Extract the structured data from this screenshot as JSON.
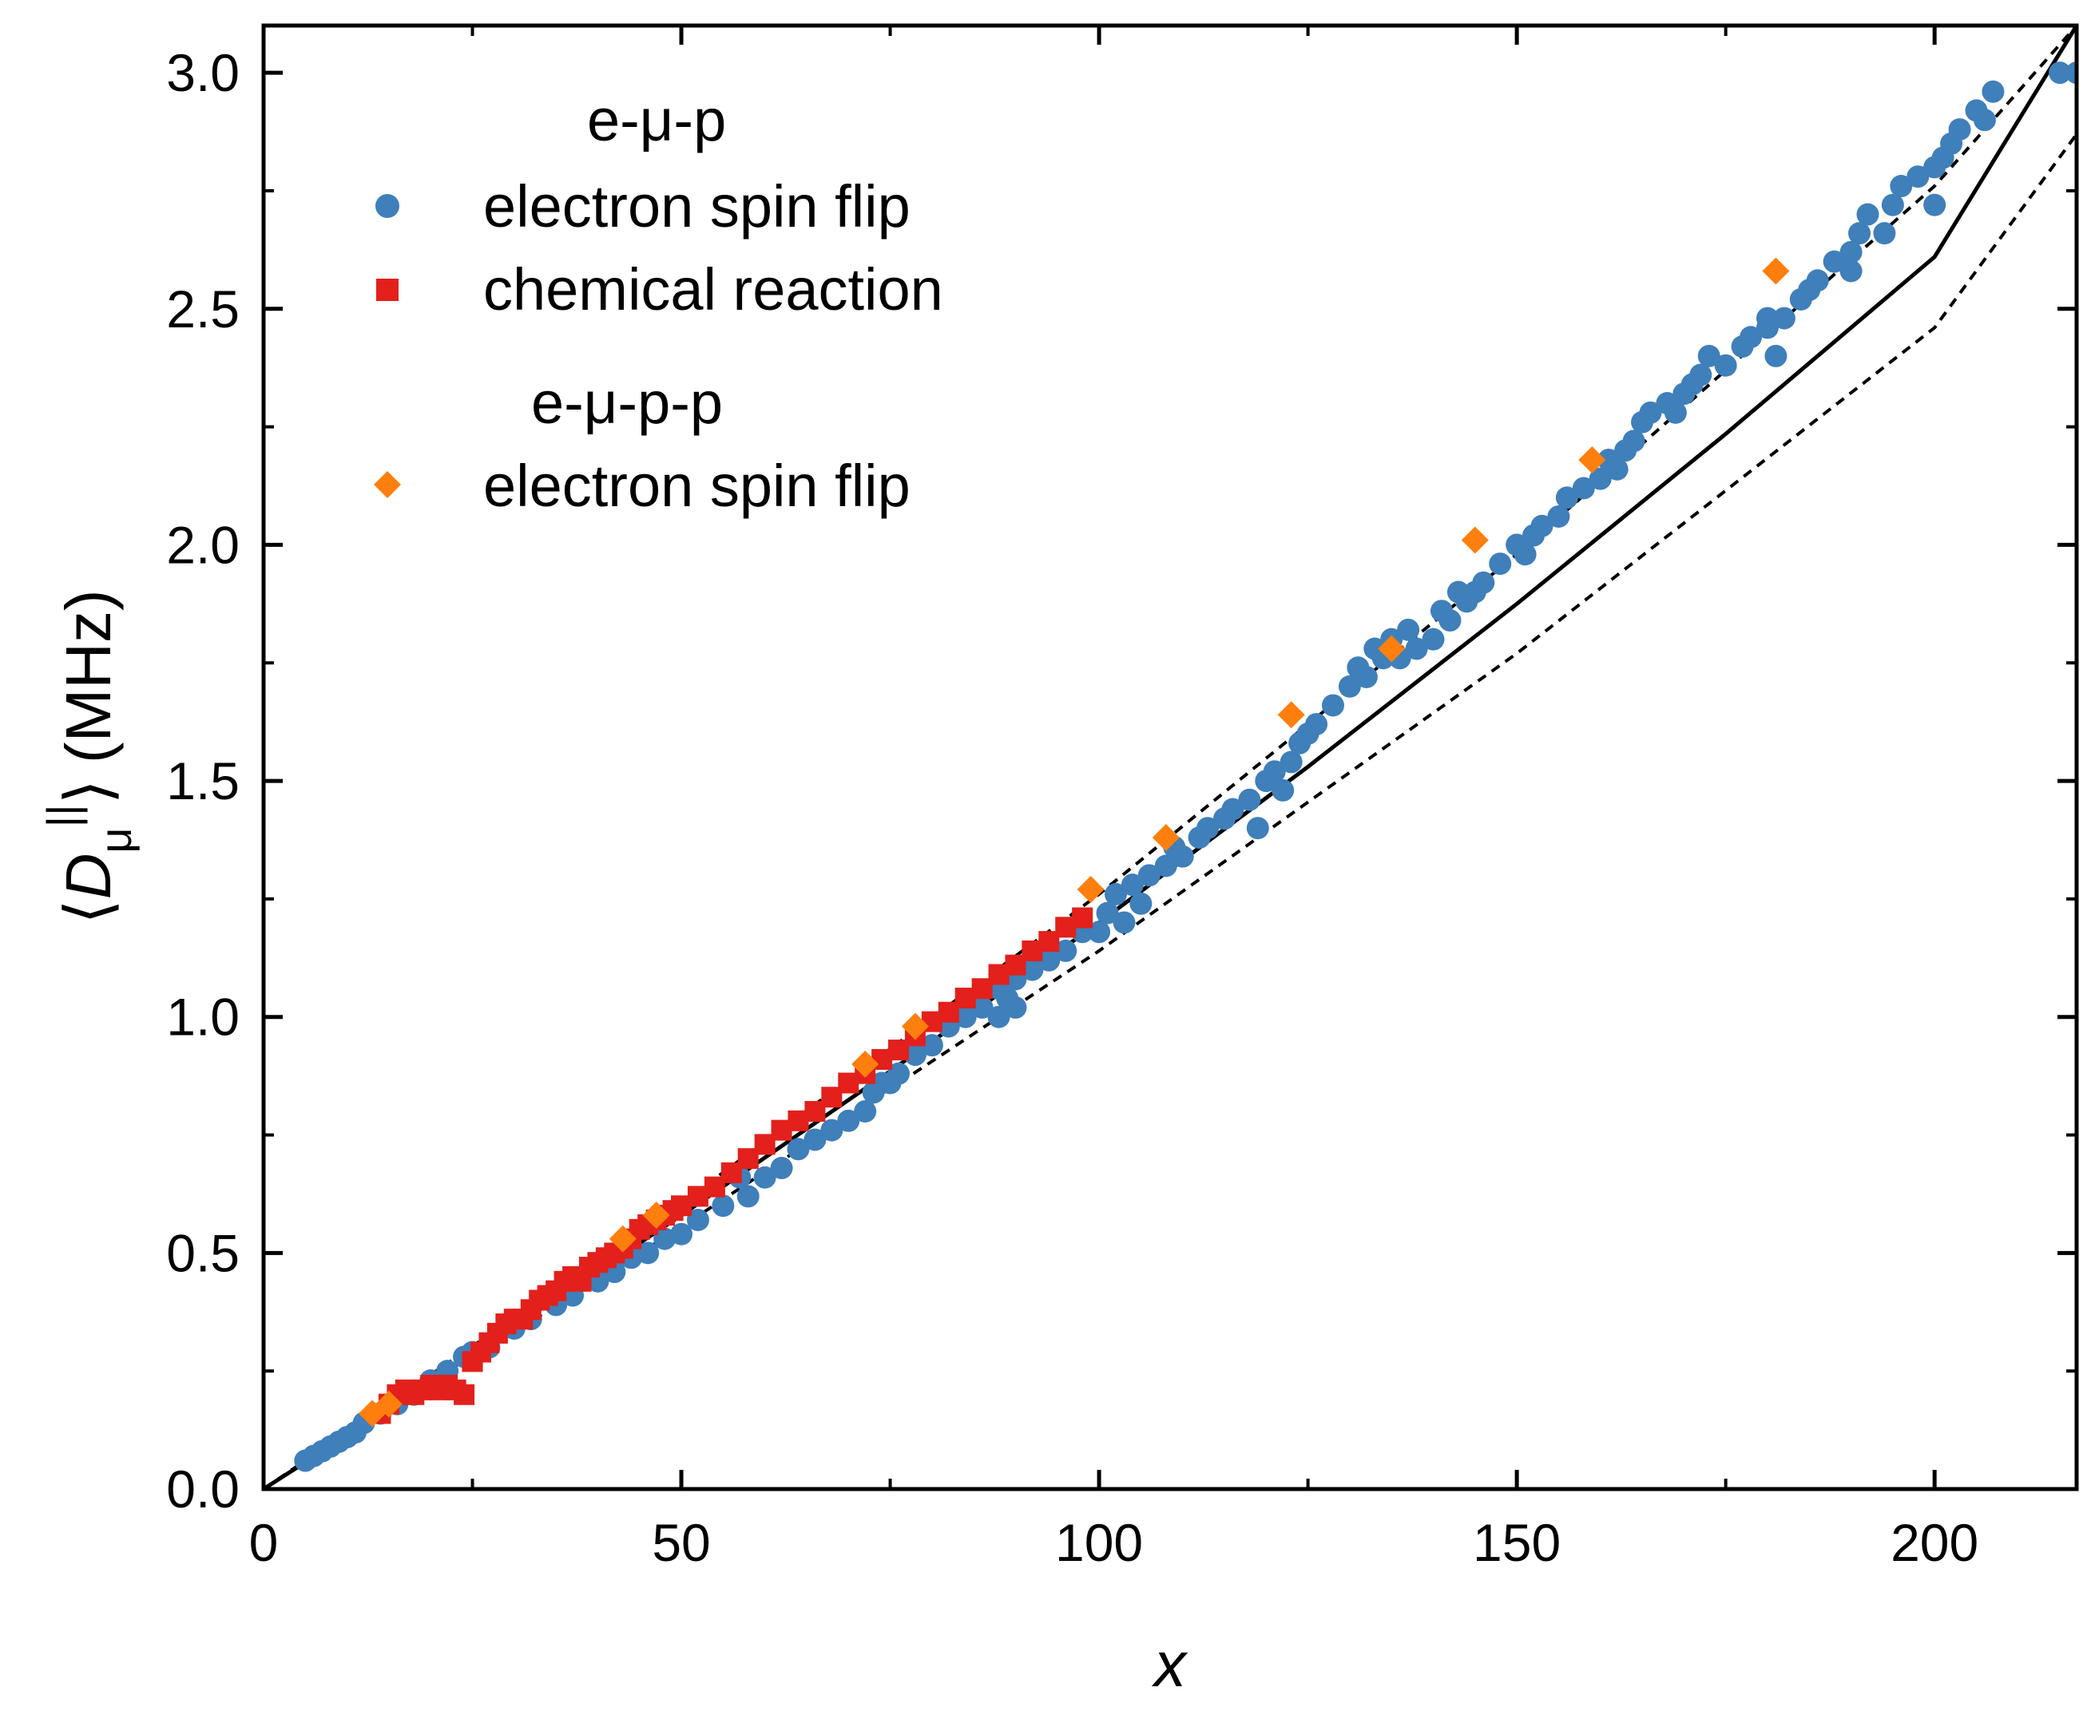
{
  "chart_data": {
    "type": "scatter",
    "xlabel": "x",
    "ylabel_parts": {
      "open": "⟨",
      "var": "D",
      "sub": "μ",
      "sup": "||",
      "close": "⟩",
      "unit": "(MHz)"
    },
    "xlim": [
      0,
      217
    ],
    "ylim": [
      0,
      3.1
    ],
    "xticks": [
      0,
      50,
      100,
      150,
      200
    ],
    "xtick_labels": [
      "0",
      "50",
      "100",
      "150",
      "200"
    ],
    "yticks": [
      0,
      0.5,
      1.0,
      1.5,
      2.0,
      2.5,
      3.0
    ],
    "ytick_labels": [
      "0.0",
      "0.5",
      "1.0",
      "1.5",
      "2.0",
      "2.5",
      "3.0"
    ],
    "legend": {
      "group1_title": "e-μ-p",
      "group1_series1": "electron spin flip",
      "group1_series2": "chemical reaction",
      "group2_title": "e-μ-p-p",
      "group2_series1": "electron spin flip"
    },
    "colors": {
      "blue": "#3f7fba",
      "red": "#e3201b",
      "orange": "#ff7f0e",
      "line": "#000000"
    },
    "fit_curve": {
      "style": "solid",
      "x": [
        0,
        25,
        50,
        75,
        100,
        125,
        150,
        175,
        200,
        217
      ],
      "y": [
        0,
        0.285,
        0.58,
        0.885,
        1.2,
        1.53,
        1.875,
        2.235,
        2.61,
        3.1
      ]
    },
    "upper_bound": {
      "style": "dashed",
      "x": [
        0,
        50,
        100,
        150,
        200,
        217
      ],
      "y": [
        0,
        0.605,
        1.26,
        1.98,
        2.76,
        3.1
      ]
    },
    "lower_bound": {
      "style": "dashed",
      "x": [
        0,
        50,
        100,
        150,
        200,
        217
      ],
      "y": [
        0,
        0.555,
        1.14,
        1.77,
        2.46,
        2.87
      ]
    },
    "series": [
      {
        "name": "e-μ-p electron spin flip",
        "marker": "circle",
        "x": [
          5,
          6,
          7,
          8,
          9,
          10,
          11,
          12,
          14,
          16,
          18,
          20,
          22,
          24,
          25,
          27,
          30,
          32,
          35,
          37,
          40,
          42,
          44,
          46,
          48,
          50,
          52,
          55,
          57,
          58,
          60,
          62,
          64,
          66,
          68,
          70,
          72,
          73,
          74,
          75,
          76,
          78,
          80,
          82,
          84,
          86,
          88,
          88,
          89,
          90,
          90,
          92,
          94,
          96,
          98,
          100,
          101,
          102,
          103,
          104,
          105,
          106,
          108,
          109,
          110,
          112,
          113,
          115,
          116,
          118,
          119,
          120,
          121,
          122,
          123,
          124,
          125,
          126,
          128,
          130,
          131,
          132,
          133,
          134,
          135,
          136,
          137,
          138,
          140,
          141,
          142,
          143,
          144,
          145,
          146,
          148,
          150,
          151,
          152,
          153,
          155,
          156,
          158,
          160,
          161,
          162,
          163,
          164,
          165,
          166,
          168,
          169,
          170,
          171,
          172,
          173,
          175,
          177,
          178,
          180,
          180,
          181,
          182,
          184,
          185,
          186,
          188,
          190,
          190,
          191,
          192,
          194,
          195,
          196,
          198,
          200,
          200,
          201,
          202,
          203,
          205,
          206,
          207,
          215,
          217
        ],
        "y": [
          0.06,
          0.07,
          0.08,
          0.09,
          0.1,
          0.11,
          0.12,
          0.14,
          0.16,
          0.18,
          0.2,
          0.23,
          0.25,
          0.28,
          0.29,
          0.3,
          0.34,
          0.36,
          0.39,
          0.41,
          0.44,
          0.46,
          0.49,
          0.5,
          0.53,
          0.54,
          0.57,
          0.6,
          0.66,
          0.62,
          0.66,
          0.68,
          0.72,
          0.74,
          0.76,
          0.78,
          0.8,
          0.84,
          0.86,
          0.86,
          0.88,
          0.92,
          0.94,
          0.98,
          1.0,
          1.02,
          1.0,
          1.06,
          1.04,
          1.02,
          1.08,
          1.1,
          1.12,
          1.14,
          1.18,
          1.18,
          1.22,
          1.26,
          1.2,
          1.28,
          1.24,
          1.3,
          1.32,
          1.36,
          1.34,
          1.38,
          1.4,
          1.42,
          1.44,
          1.46,
          1.4,
          1.5,
          1.52,
          1.48,
          1.54,
          1.58,
          1.6,
          1.62,
          1.66,
          1.7,
          1.74,
          1.72,
          1.78,
          1.76,
          1.8,
          1.76,
          1.82,
          1.78,
          1.8,
          1.86,
          1.84,
          1.9,
          1.88,
          1.9,
          1.92,
          1.96,
          2.0,
          1.98,
          2.02,
          2.04,
          2.06,
          2.1,
          2.12,
          2.14,
          2.18,
          2.16,
          2.2,
          2.22,
          2.26,
          2.28,
          2.3,
          2.28,
          2.32,
          2.34,
          2.36,
          2.4,
          2.38,
          2.42,
          2.44,
          2.48,
          2.46,
          2.4,
          2.48,
          2.52,
          2.54,
          2.56,
          2.6,
          2.58,
          2.62,
          2.66,
          2.7,
          2.66,
          2.72,
          2.76,
          2.78,
          2.8,
          2.72,
          2.82,
          2.85,
          2.88,
          2.92,
          2.9,
          2.96,
          3.0,
          3.0
        ]
      },
      {
        "name": "e-μ-p chemical reaction",
        "marker": "square",
        "x": [
          14,
          15,
          16,
          17,
          18,
          19,
          20,
          21,
          22,
          23,
          24,
          25,
          26,
          27,
          28,
          29,
          30,
          31,
          32,
          33,
          34,
          35,
          36,
          37,
          38,
          39,
          40,
          41,
          42,
          43,
          44,
          45,
          46,
          47,
          48,
          49,
          50,
          52,
          54,
          56,
          58,
          60,
          62,
          64,
          66,
          68,
          70,
          72,
          74,
          76,
          78,
          80,
          82,
          84,
          86,
          88,
          90,
          92,
          94,
          96,
          98
        ],
        "y": [
          0.16,
          0.18,
          0.2,
          0.21,
          0.2,
          0.21,
          0.22,
          0.21,
          0.22,
          0.21,
          0.2,
          0.27,
          0.29,
          0.31,
          0.33,
          0.35,
          0.36,
          0.36,
          0.38,
          0.4,
          0.41,
          0.42,
          0.44,
          0.45,
          0.44,
          0.47,
          0.48,
          0.49,
          0.5,
          0.51,
          0.53,
          0.55,
          0.56,
          0.57,
          0.58,
          0.59,
          0.6,
          0.62,
          0.64,
          0.67,
          0.7,
          0.73,
          0.76,
          0.78,
          0.8,
          0.83,
          0.86,
          0.88,
          0.91,
          0.93,
          0.96,
          0.99,
          1.01,
          1.04,
          1.06,
          1.09,
          1.11,
          1.14,
          1.16,
          1.19,
          1.21
        ]
      },
      {
        "name": "e-μ-p-p electron spin flip",
        "marker": "diamond",
        "x": [
          13,
          15,
          43,
          47,
          72,
          78,
          99,
          108,
          123,
          135,
          145,
          159,
          181
        ],
        "y": [
          0.16,
          0.18,
          0.53,
          0.58,
          0.9,
          0.98,
          1.27,
          1.38,
          1.64,
          1.78,
          2.01,
          2.18,
          2.58
        ]
      }
    ]
  }
}
